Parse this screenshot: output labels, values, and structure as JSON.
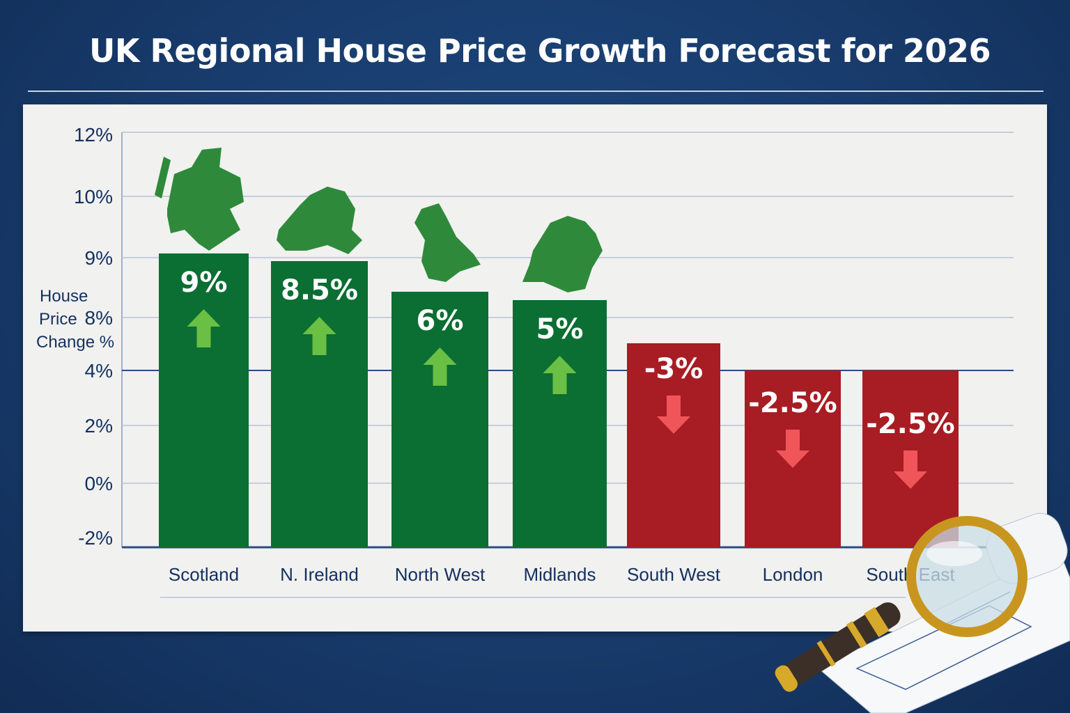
{
  "chart_data": {
    "type": "bar",
    "title": "UK Regional House Price Growth Forecast for 2026",
    "ylabel": [
      "House",
      "Price",
      "Change %"
    ],
    "y_ticks": [
      "12%",
      "10%",
      "9%",
      "8%",
      "4%",
      "2%",
      "0%",
      "-2%"
    ],
    "categories": [
      "Scotland",
      "N. Ireland",
      "North West",
      "Midlands",
      "South West",
      "London",
      "South East"
    ],
    "values": [
      9,
      8.5,
      6,
      5,
      -3,
      -2.5,
      -2.5
    ],
    "data_labels": [
      "9%",
      "8.5%",
      "6%",
      "5%",
      "-3%",
      "-2.5%",
      "-2.5%"
    ],
    "directions": [
      "up",
      "up",
      "up",
      "up",
      "down",
      "down",
      "down"
    ],
    "grid": true,
    "colors": {
      "positive": "#0b6e32",
      "negative": "#a81c24",
      "arrow_up": "#6abf45",
      "arrow_down": "#f0555a",
      "axis_text": "#14305e",
      "background": "#173a6a"
    }
  }
}
